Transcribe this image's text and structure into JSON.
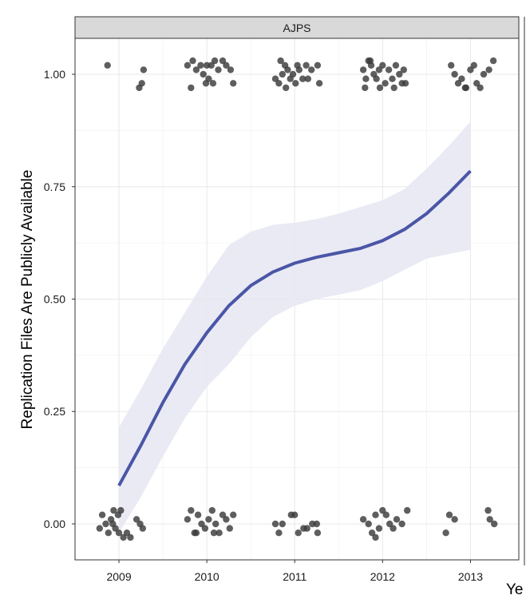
{
  "chart_data": {
    "type": "scatter",
    "facet_label": "AJPS",
    "ylabel": "Replication Files Are Publicly Available",
    "xlabel": "Ye",
    "x_ticks": [
      "2009",
      "2010",
      "2011",
      "2012",
      "2013"
    ],
    "y_ticks": [
      "0.00",
      "0.25",
      "0.50",
      "0.75",
      "1.00"
    ],
    "x_range": [
      2008.5,
      2013.55
    ],
    "y_range": [
      -0.08,
      1.08
    ],
    "grid": true,
    "colors": {
      "points": "#3a3a3a",
      "smooth_line": "#4a56a6",
      "confidence_band": "#e6e6f3",
      "strip": "#d9d9d9",
      "grid": "#e8e8e8"
    },
    "series": [
      {
        "kind": "jitter-points",
        "points": [
          [
            2008.87,
            1.02
          ],
          [
            2009.28,
            1.01
          ],
          [
            2009.26,
            0.98
          ],
          [
            2009.23,
            0.97
          ],
          [
            2009.78,
            1.02
          ],
          [
            2009.84,
            1.03
          ],
          [
            2009.88,
            1.01
          ],
          [
            2009.93,
            1.02
          ],
          [
            2009.96,
            1.0
          ],
          [
            2010.0,
            1.02
          ],
          [
            2010.02,
            0.99
          ],
          [
            2010.05,
            1.02
          ],
          [
            2010.09,
            1.03
          ],
          [
            2010.13,
            1.01
          ],
          [
            2010.18,
            1.03
          ],
          [
            2010.22,
            1.02
          ],
          [
            2010.27,
            1.01
          ],
          [
            2009.99,
            0.98
          ],
          [
            2010.07,
            0.98
          ],
          [
            2009.82,
            0.97
          ],
          [
            2010.3,
            0.98
          ],
          [
            2010.78,
            0.99
          ],
          [
            2010.82,
            0.98
          ],
          [
            2010.86,
            1.0
          ],
          [
            2010.89,
            1.02
          ],
          [
            2010.92,
            1.01
          ],
          [
            2010.95,
            0.99
          ],
          [
            2010.98,
            1.0
          ],
          [
            2011.01,
            0.98
          ],
          [
            2011.05,
            1.01
          ],
          [
            2011.09,
            0.99
          ],
          [
            2011.13,
            1.02
          ],
          [
            2011.19,
            1.01
          ],
          [
            2011.26,
            1.02
          ],
          [
            2011.28,
            0.98
          ],
          [
            2010.84,
            1.03
          ],
          [
            2010.9,
            0.97
          ],
          [
            2011.15,
            0.99
          ],
          [
            2011.03,
            1.02
          ],
          [
            2011.78,
            1.01
          ],
          [
            2011.81,
            0.99
          ],
          [
            2011.84,
            1.03
          ],
          [
            2011.87,
            1.02
          ],
          [
            2011.9,
            1.0
          ],
          [
            2011.93,
            0.99
          ],
          [
            2011.96,
            1.01
          ],
          [
            2012.0,
            1.02
          ],
          [
            2012.03,
            0.98
          ],
          [
            2012.07,
            1.01
          ],
          [
            2012.11,
            0.99
          ],
          [
            2012.15,
            1.02
          ],
          [
            2012.19,
            1.0
          ],
          [
            2012.24,
            1.01
          ],
          [
            2012.26,
            0.98
          ],
          [
            2011.8,
            0.97
          ],
          [
            2011.97,
            0.97
          ],
          [
            2012.13,
            0.97
          ],
          [
            2012.22,
            0.98
          ],
          [
            2011.86,
            1.03
          ],
          [
            2012.78,
            1.02
          ],
          [
            2012.82,
            1.0
          ],
          [
            2012.86,
            0.98
          ],
          [
            2012.9,
            0.99
          ],
          [
            2012.95,
            0.97
          ],
          [
            2013.0,
            1.01
          ],
          [
            2013.04,
            1.02
          ],
          [
            2013.07,
            0.98
          ],
          [
            2013.11,
            0.97
          ],
          [
            2013.15,
            1.0
          ],
          [
            2013.21,
            1.01
          ],
          [
            2013.26,
            1.03
          ],
          [
            2012.94,
            0.97
          ],
          [
            2008.78,
            -0.01
          ],
          [
            2008.81,
            0.02
          ],
          [
            2008.85,
            0.0
          ],
          [
            2008.88,
            -0.02
          ],
          [
            2008.91,
            0.01
          ],
          [
            2008.94,
            0.03
          ],
          [
            2008.96,
            -0.01
          ],
          [
            2008.99,
            0.02
          ],
          [
            2009.02,
            0.03
          ],
          [
            2009.05,
            -0.03
          ],
          [
            2009.09,
            -0.02
          ],
          [
            2009.13,
            -0.03
          ],
          [
            2009.2,
            0.01
          ],
          [
            2009.24,
            0.0
          ],
          [
            2009.27,
            -0.01
          ],
          [
            2008.93,
            0.0
          ],
          [
            2009.0,
            -0.02
          ],
          [
            2009.78,
            0.01
          ],
          [
            2009.82,
            0.03
          ],
          [
            2009.86,
            -0.02
          ],
          [
            2009.9,
            0.02
          ],
          [
            2009.94,
            0.0
          ],
          [
            2009.98,
            -0.01
          ],
          [
            2010.02,
            0.01
          ],
          [
            2010.06,
            0.03
          ],
          [
            2010.1,
            0.0
          ],
          [
            2010.14,
            -0.02
          ],
          [
            2010.18,
            0.02
          ],
          [
            2010.22,
            0.01
          ],
          [
            2010.26,
            -0.01
          ],
          [
            2010.3,
            0.02
          ],
          [
            2009.88,
            -0.02
          ],
          [
            2010.08,
            -0.02
          ],
          [
            2010.78,
            0.0
          ],
          [
            2010.82,
            -0.02
          ],
          [
            2010.86,
            0.0
          ],
          [
            2010.96,
            0.02
          ],
          [
            2011.0,
            0.02
          ],
          [
            2011.04,
            -0.02
          ],
          [
            2011.1,
            -0.01
          ],
          [
            2011.14,
            -0.01
          ],
          [
            2011.2,
            0.0
          ],
          [
            2011.26,
            -0.02
          ],
          [
            2011.25,
            0.0
          ],
          [
            2011.78,
            0.01
          ],
          [
            2011.84,
            0.0
          ],
          [
            2011.88,
            -0.02
          ],
          [
            2011.92,
            0.02
          ],
          [
            2011.96,
            -0.01
          ],
          [
            2012.0,
            0.03
          ],
          [
            2012.04,
            0.02
          ],
          [
            2012.08,
            0.0
          ],
          [
            2012.12,
            -0.01
          ],
          [
            2012.16,
            0.01
          ],
          [
            2012.22,
            0.0
          ],
          [
            2012.28,
            0.03
          ],
          [
            2011.92,
            -0.03
          ],
          [
            2012.72,
            -0.02
          ],
          [
            2012.76,
            0.02
          ],
          [
            2012.82,
            0.01
          ],
          [
            2013.2,
            0.03
          ],
          [
            2013.22,
            0.01
          ],
          [
            2013.27,
            0.0
          ]
        ]
      },
      {
        "kind": "smooth-line",
        "x": [
          2009.0,
          2009.25,
          2009.5,
          2009.75,
          2010.0,
          2010.25,
          2010.5,
          2010.75,
          2011.0,
          2011.25,
          2011.5,
          2011.75,
          2012.0,
          2012.25,
          2012.5,
          2012.75,
          2013.0
        ],
        "y": [
          0.085,
          0.175,
          0.27,
          0.355,
          0.425,
          0.485,
          0.53,
          0.56,
          0.58,
          0.593,
          0.603,
          0.613,
          0.63,
          0.655,
          0.69,
          0.735,
          0.785
        ]
      },
      {
        "kind": "confidence-band",
        "x": [
          2009.0,
          2009.25,
          2009.5,
          2009.75,
          2010.0,
          2010.25,
          2010.5,
          2010.75,
          2011.0,
          2011.25,
          2011.5,
          2011.75,
          2012.0,
          2012.25,
          2012.5,
          2012.75,
          2013.0
        ],
        "upper": [
          0.215,
          0.3,
          0.39,
          0.47,
          0.55,
          0.62,
          0.65,
          0.665,
          0.67,
          0.678,
          0.69,
          0.705,
          0.72,
          0.745,
          0.79,
          0.84,
          0.895
        ],
        "lower": [
          -0.02,
          0.06,
          0.15,
          0.235,
          0.305,
          0.355,
          0.415,
          0.46,
          0.485,
          0.5,
          0.51,
          0.52,
          0.54,
          0.565,
          0.59,
          0.6,
          0.61
        ]
      }
    ]
  }
}
